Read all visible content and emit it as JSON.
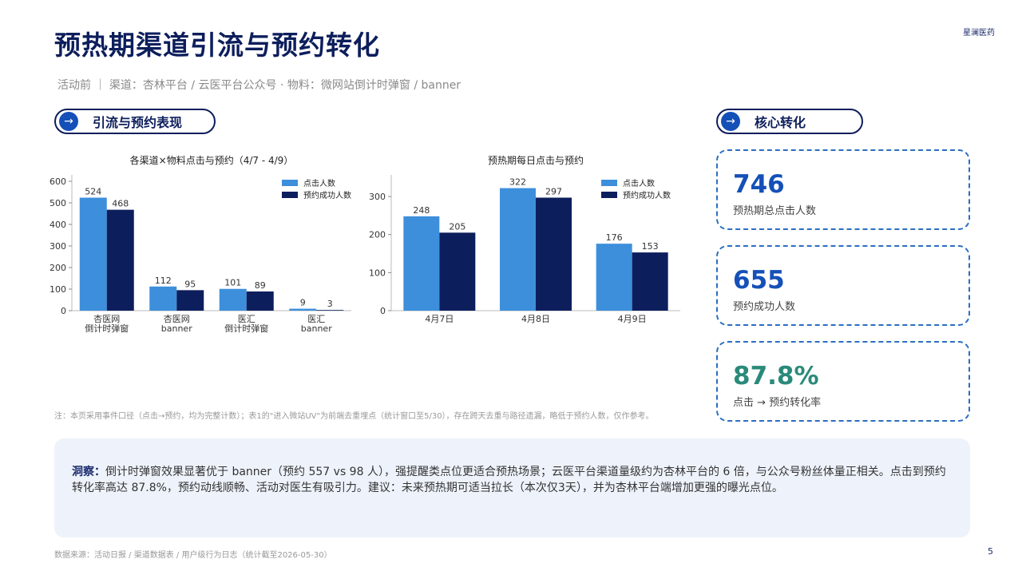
{
  "header": {
    "title": "预热期渠道引流与预约转化",
    "brand": "星澜医药",
    "subtitle": "活动前 ｜ 渠道：杏林平台 / 云医平台公众号 · 物料：微网站倒计时弹窗 / banner"
  },
  "sections": {
    "left": "引流与预约表现",
    "right": "核心转化"
  },
  "kpis": [
    {
      "value": "746",
      "label": "预热期总点击人数",
      "color": "#1450b8"
    },
    {
      "value": "655",
      "label": "预约成功人数",
      "color": "#1450b8"
    },
    {
      "value": "87.8%",
      "label": "点击 → 预约转化率",
      "color": "#2a8a7a"
    }
  ],
  "chart_data": [
    {
      "type": "bar",
      "title": "各渠道×物料点击与预约（4/7 - 4/9）",
      "categories": [
        [
          "杏医网",
          "倒计时弹窗"
        ],
        [
          "杏医网",
          "banner"
        ],
        [
          "医汇",
          "倒计时弹窗"
        ],
        [
          "医汇",
          "banner"
        ]
      ],
      "series": [
        {
          "name": "点击人数",
          "values": [
            524,
            112,
            101,
            9
          ],
          "color": "#3d8fdc"
        },
        {
          "name": "预约成功人数",
          "values": [
            468,
            95,
            89,
            3
          ],
          "color": "#0d1e5c"
        }
      ],
      "ylim": [
        0,
        600
      ],
      "yticks": [
        0,
        100,
        200,
        300,
        400,
        500,
        600
      ],
      "legend": "top-right"
    },
    {
      "type": "bar",
      "title": "预热期每日点击与预约",
      "categories": [
        [
          "4月7日"
        ],
        [
          "4月8日"
        ],
        [
          "4月9日"
        ]
      ],
      "series": [
        {
          "name": "点击人数",
          "values": [
            248,
            322,
            176
          ],
          "color": "#3d8fdc"
        },
        {
          "name": "预约成功人数",
          "values": [
            205,
            297,
            153
          ],
          "color": "#0d1e5c"
        }
      ],
      "ylim": [
        0,
        340
      ],
      "yticks": [
        0,
        100,
        200,
        300
      ],
      "legend": "top-right"
    }
  ],
  "note": "注：本页采用事件口径（点击→预约，均为完整计数）；表1的\"进入微站UV\"为前端去重埋点（统计窗口至5/30），存在跨天去重与路径遗漏，略低于预约人数，仅作参考。",
  "insight": {
    "label": "洞察：",
    "text": "倒计时弹窗效果显著优于 banner（预约 557 vs 98 人），强提醒类点位更适合预热场景；云医平台渠道量级约为杏林平台的 6 倍，与公众号粉丝体量正相关。点击到预约转化率高达 87.8%，预约动线顺畅、活动对医生有吸引力。建议：未来预热期可适当拉长（本次仅3天），并为杏林平台端增加更强的曝光点位。"
  },
  "footer": {
    "source": "数据来源：活动日报 / 渠道数据表 / 用户级行为日志（统计截至2026-05-30）",
    "page": "5"
  }
}
